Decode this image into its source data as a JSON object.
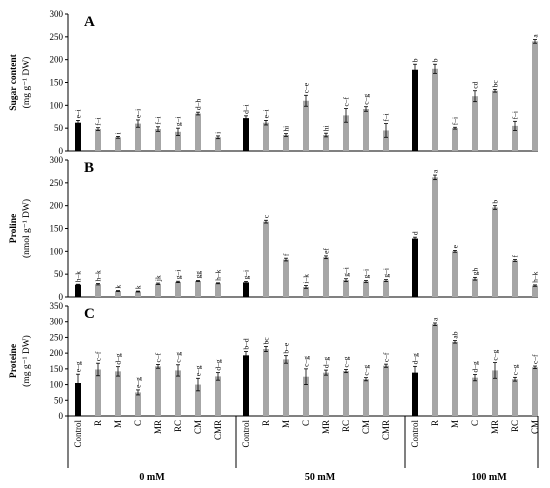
{
  "figure": {
    "group_labels": [
      "0 mM",
      "50 mM",
      "100 mM"
    ],
    "treatments": [
      "Control",
      "R",
      "M",
      "C",
      "MR",
      "RC",
      "CM",
      "CMR"
    ]
  },
  "colors": {
    "control": "#000000",
    "treatment": "#a6a6a6",
    "axis": "#000000"
  },
  "chart_data": [
    {
      "panel": "A",
      "type": "bar",
      "ylabel_main": "Sugar content",
      "ylabel_unit": "(mg g⁻¹ DW)",
      "ylim": [
        0,
        300
      ],
      "yticks": [
        0,
        50,
        100,
        150,
        200,
        250,
        300
      ],
      "groups": [
        {
          "name": "0 mM",
          "values": [
            62,
            48,
            30,
            60,
            48,
            42,
            82,
            30
          ],
          "errors": [
            5,
            3,
            2,
            8,
            5,
            8,
            3,
            3
          ],
          "letters": [
            "e–i",
            "f–i",
            "i",
            "e–i",
            "f–i",
            "g–i",
            "d–h",
            "i"
          ]
        },
        {
          "name": "50 mM",
          "values": [
            72,
            62,
            35,
            110,
            35,
            78,
            92,
            45
          ],
          "errors": [
            5,
            5,
            3,
            12,
            4,
            15,
            5,
            15
          ],
          "letters": [
            "d–i",
            "e–i",
            "hi",
            "c–e",
            "hi",
            "c–f",
            "c–g",
            "f–i"
          ]
        },
        {
          "name": "100 mM",
          "values": [
            178,
            180,
            50,
            120,
            132,
            55,
            240,
            124
          ],
          "errors": [
            12,
            10,
            2,
            12,
            3,
            10,
            4,
            25
          ],
          "letters": [
            "b",
            "b",
            "f–i",
            "cd",
            "bc",
            "f–i",
            "a",
            "cd"
          ]
        }
      ]
    },
    {
      "panel": "B",
      "type": "bar",
      "ylabel_main": "Proline",
      "ylabel_unit": "(nmol g⁻¹ DW)",
      "ylim": [
        0,
        300
      ],
      "yticks": [
        0,
        50,
        100,
        150,
        200,
        250,
        300
      ],
      "groups": [
        {
          "name": "0 mM",
          "values": [
            27,
            28,
            13,
            12,
            29,
            33,
            35,
            30
          ],
          "errors": [
            1,
            1.5,
            1,
            1,
            1.5,
            1.5,
            1,
            1
          ],
          "letters": [
            "h–k",
            "h–k",
            "k",
            "k",
            "jk",
            "g–i",
            "gg",
            "h–k"
          ]
        },
        {
          "name": "50 mM",
          "values": [
            32,
            165,
            82,
            22,
            87,
            37,
            34,
            36
          ],
          "errors": [
            2,
            3,
            3,
            3,
            3,
            3,
            2,
            2
          ],
          "letters": [
            "g–i",
            "c",
            "f",
            "i–k",
            "ef",
            "g–i",
            "g–i",
            "g–i"
          ]
        },
        {
          "name": "100 mM",
          "values": [
            128,
            262,
            100,
            40,
            196,
            80,
            25,
            36
          ],
          "errors": [
            3,
            5,
            2,
            3,
            4,
            2,
            1.5,
            2
          ],
          "letters": [
            "d",
            "a",
            "e",
            "gh",
            "b",
            "f",
            "h–k",
            "g–i"
          ]
        }
      ]
    },
    {
      "panel": "C",
      "type": "bar",
      "ylabel_main": "Proteine",
      "ylabel_unit": "(mg g⁻¹ DW)",
      "ylim": [
        0,
        350
      ],
      "yticks": [
        0,
        50,
        100,
        150,
        200,
        250,
        300,
        350
      ],
      "groups": [
        {
          "name": "0 mM",
          "values": [
            105,
            148,
            142,
            75,
            158,
            145,
            100,
            126
          ],
          "errors": [
            28,
            20,
            15,
            8,
            6,
            18,
            20,
            12
          ],
          "letters": [
            "e–g",
            "c–f",
            "d–g",
            "e–g",
            "c–f",
            "c–g",
            "e–g",
            "d–g"
          ]
        },
        {
          "name": "50 mM",
          "values": [
            193,
            213,
            180,
            125,
            138,
            143,
            117,
            160
          ],
          "errors": [
            12,
            8,
            12,
            25,
            8,
            5,
            5,
            5
          ],
          "letters": [
            "b–d",
            "bc",
            "b–e",
            "c–g",
            "d–g",
            "c–g",
            "c–g",
            "c–f"
          ]
        },
        {
          "name": "100 mM",
          "values": [
            138,
            292,
            236,
            122,
            145,
            117,
            155,
            157
          ],
          "errors": [
            20,
            4,
            4,
            10,
            25,
            6,
            4,
            12
          ],
          "letters": [
            "d–g",
            "a",
            "ab",
            "d–g",
            "c–g",
            "c–g",
            "c–f",
            "d–g"
          ]
        }
      ]
    }
  ]
}
